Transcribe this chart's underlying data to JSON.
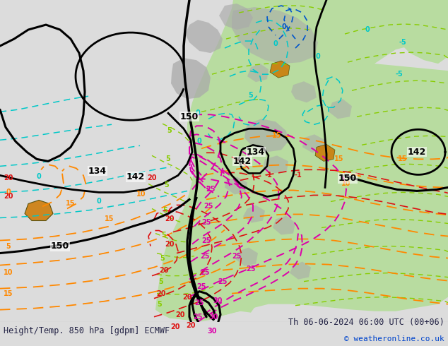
{
  "title_left": "Height/Temp. 850 hPa [gdpm] ECMWF",
  "title_right": "Th 06-06-2024 06:00 UTC (00+06)",
  "copyright": "© weatheronline.co.uk",
  "title_fontsize": 8.5,
  "copyright_fontsize": 8.0,
  "bg_color": "#dcdcdc",
  "map_bg_color": "#dcdcdc",
  "green_fill": "#b8dca0",
  "gray_fill": "#aaaaaa",
  "black_c": "#000000",
  "cyan_c": "#00c8c8",
  "teal_c": "#00a0a0",
  "lime_c": "#88cc00",
  "orange_c": "#ff8800",
  "red_c": "#dd1111",
  "pink_c": "#dd00aa",
  "blue_c": "#0055cc",
  "figsize": [
    6.34,
    4.9
  ],
  "dpi": 100
}
